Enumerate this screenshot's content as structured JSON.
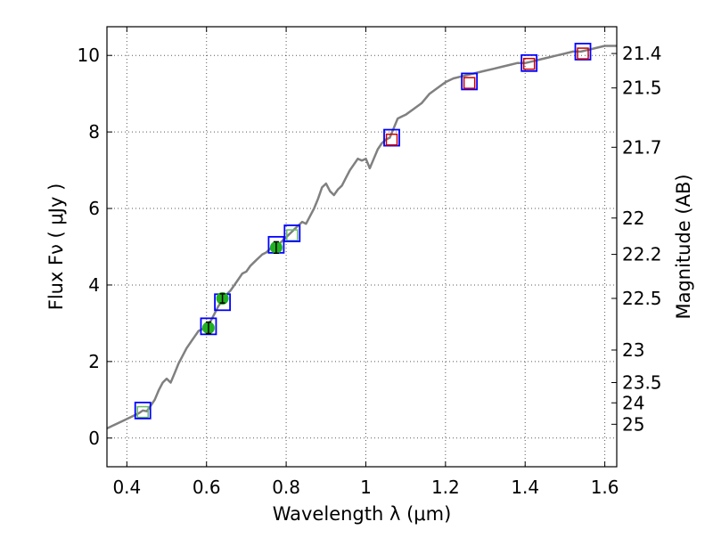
{
  "chart_data": {
    "type": "line",
    "title": "",
    "xlabel": "Wavelength  λ (μm)",
    "ylabel": "Flux  Fν  ( μJy )",
    "y2label": "Magnitude (AB)",
    "xlim": [
      0.35,
      1.63
    ],
    "ylim": [
      -0.75,
      10.75
    ],
    "grid": true,
    "x_ticks": [
      0.4,
      0.6,
      0.8,
      1.0,
      1.2,
      1.4,
      1.6
    ],
    "x_tick_labels": [
      "0.4",
      "0.6",
      "0.8",
      "1",
      "1.2",
      "1.4",
      "1.6"
    ],
    "y_ticks": [
      0,
      2,
      4,
      6,
      8,
      10
    ],
    "y_tick_labels": [
      "0",
      "2",
      "4",
      "6",
      "8",
      "10"
    ],
    "y2_ticks": [
      {
        "label": "21.4",
        "flux": 10.05
      },
      {
        "label": "21.5",
        "flux": 9.15
      },
      {
        "label": "21.7",
        "flux": 7.6
      },
      {
        "label": "22",
        "flux": 5.75
      },
      {
        "label": "22.2",
        "flux": 4.8
      },
      {
        "label": "22.5",
        "flux": 3.65
      },
      {
        "label": "23",
        "flux": 2.3
      },
      {
        "label": "23.5",
        "flux": 1.45
      },
      {
        "label": "24",
        "flux": 0.92
      },
      {
        "label": "25",
        "flux": 0.36
      }
    ],
    "series": [
      {
        "kind": "model",
        "color": "#808080",
        "points": [
          [
            0.35,
            0.25
          ],
          [
            0.37,
            0.35
          ],
          [
            0.39,
            0.45
          ],
          [
            0.41,
            0.55
          ],
          [
            0.43,
            0.65
          ],
          [
            0.44,
            0.72
          ],
          [
            0.45,
            0.7
          ],
          [
            0.46,
            0.85
          ],
          [
            0.47,
            1.0
          ],
          [
            0.48,
            1.25
          ],
          [
            0.49,
            1.45
          ],
          [
            0.5,
            1.55
          ],
          [
            0.51,
            1.45
          ],
          [
            0.52,
            1.7
          ],
          [
            0.53,
            1.95
          ],
          [
            0.54,
            2.15
          ],
          [
            0.55,
            2.35
          ],
          [
            0.56,
            2.5
          ],
          [
            0.57,
            2.65
          ],
          [
            0.58,
            2.8
          ],
          [
            0.59,
            2.85
          ],
          [
            0.6,
            2.95
          ],
          [
            0.61,
            3.05
          ],
          [
            0.62,
            3.25
          ],
          [
            0.63,
            3.45
          ],
          [
            0.64,
            3.6
          ],
          [
            0.65,
            3.75
          ],
          [
            0.66,
            3.85
          ],
          [
            0.67,
            4.0
          ],
          [
            0.68,
            4.15
          ],
          [
            0.69,
            4.3
          ],
          [
            0.7,
            4.35
          ],
          [
            0.71,
            4.5
          ],
          [
            0.72,
            4.6
          ],
          [
            0.73,
            4.7
          ],
          [
            0.74,
            4.8
          ],
          [
            0.75,
            4.85
          ],
          [
            0.76,
            4.95
          ],
          [
            0.77,
            5.0
          ],
          [
            0.78,
            5.05
          ],
          [
            0.79,
            5.15
          ],
          [
            0.8,
            5.25
          ],
          [
            0.81,
            5.35
          ],
          [
            0.82,
            5.45
          ],
          [
            0.83,
            5.55
          ],
          [
            0.84,
            5.65
          ],
          [
            0.85,
            5.6
          ],
          [
            0.86,
            5.8
          ],
          [
            0.87,
            6.0
          ],
          [
            0.88,
            6.25
          ],
          [
            0.89,
            6.55
          ],
          [
            0.9,
            6.65
          ],
          [
            0.91,
            6.45
          ],
          [
            0.92,
            6.35
          ],
          [
            0.93,
            6.5
          ],
          [
            0.94,
            6.6
          ],
          [
            0.95,
            6.8
          ],
          [
            0.96,
            7.0
          ],
          [
            0.97,
            7.15
          ],
          [
            0.98,
            7.3
          ],
          [
            0.99,
            7.25
          ],
          [
            1.0,
            7.3
          ],
          [
            1.01,
            7.05
          ],
          [
            1.02,
            7.3
          ],
          [
            1.03,
            7.55
          ],
          [
            1.04,
            7.7
          ],
          [
            1.05,
            7.8
          ],
          [
            1.06,
            7.85
          ],
          [
            1.07,
            8.1
          ],
          [
            1.08,
            8.35
          ],
          [
            1.09,
            8.4
          ],
          [
            1.1,
            8.45
          ],
          [
            1.12,
            8.6
          ],
          [
            1.14,
            8.75
          ],
          [
            1.16,
            9.0
          ],
          [
            1.18,
            9.15
          ],
          [
            1.2,
            9.3
          ],
          [
            1.22,
            9.4
          ],
          [
            1.24,
            9.45
          ],
          [
            1.26,
            9.5
          ],
          [
            1.28,
            9.55
          ],
          [
            1.3,
            9.6
          ],
          [
            1.32,
            9.65
          ],
          [
            1.34,
            9.7
          ],
          [
            1.36,
            9.75
          ],
          [
            1.38,
            9.8
          ],
          [
            1.4,
            9.8
          ],
          [
            1.42,
            9.85
          ],
          [
            1.44,
            9.9
          ],
          [
            1.46,
            9.95
          ],
          [
            1.48,
            10.0
          ],
          [
            1.5,
            10.05
          ],
          [
            1.52,
            10.1
          ],
          [
            1.54,
            10.1
          ],
          [
            1.56,
            10.15
          ],
          [
            1.58,
            10.2
          ],
          [
            1.6,
            10.25
          ],
          [
            1.63,
            10.25
          ]
        ]
      },
      {
        "kind": "synthetic-photometry",
        "color": "#0000ff",
        "points": [
          [
            0.44,
            0.72
          ],
          [
            0.605,
            2.92
          ],
          [
            0.64,
            3.55
          ],
          [
            0.775,
            5.05
          ],
          [
            0.815,
            5.35
          ],
          [
            1.065,
            7.85
          ],
          [
            1.26,
            9.32
          ],
          [
            1.41,
            9.8
          ],
          [
            1.545,
            10.1
          ]
        ]
      },
      {
        "kind": "observed-ir",
        "color": "#cc0000",
        "points": [
          [
            1.065,
            7.8
          ],
          [
            1.26,
            9.28
          ],
          [
            1.41,
            9.78
          ],
          [
            1.545,
            10.05
          ]
        ]
      },
      {
        "kind": "observed-optical",
        "color": "#22b022",
        "points": [
          [
            0.605,
            2.88,
            0.15
          ],
          [
            0.64,
            3.65,
            0.12
          ],
          [
            0.775,
            4.98,
            0.15
          ]
        ]
      },
      {
        "kind": "observed-optical-box",
        "color": "#66bb66",
        "points": [
          [
            0.44,
            0.68
          ],
          [
            0.815,
            5.3
          ]
        ]
      }
    ]
  }
}
